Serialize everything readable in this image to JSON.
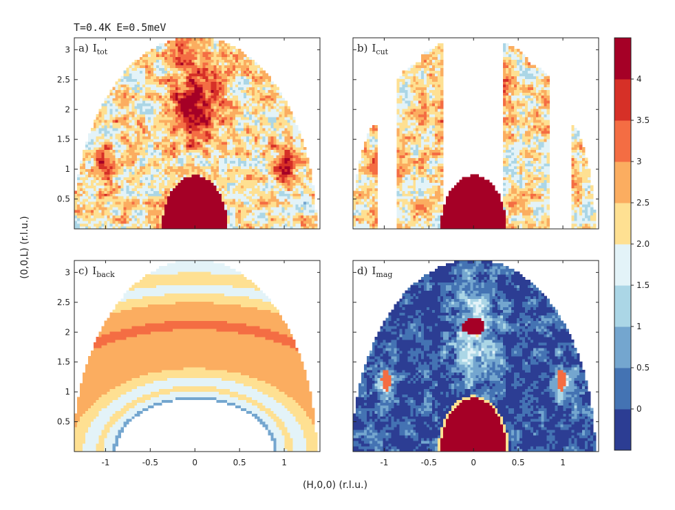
{
  "header": {
    "temperature": "T=0.4K",
    "energy": "E=0.5meV"
  },
  "axes": {
    "xlabel": "(H,0,0) (r.l.u.)",
    "ylabel": "(0,0,L) (r.l.u.)"
  },
  "colorbar": {
    "ticks": [
      "0",
      "0.5",
      "1",
      "1.5",
      "2.0",
      "2.5",
      "3",
      "3.5",
      "4"
    ],
    "colors": [
      "#2c3d93",
      "#4473b3",
      "#74a6cf",
      "#abd6e6",
      "#e3f3f8",
      "#fee092",
      "#fbad60",
      "#f46d43",
      "#d63027",
      "#a50026"
    ]
  },
  "chart_data": [
    {
      "type": "heatmap",
      "panel": "a",
      "panel_label": "a)",
      "symbol": "I",
      "subscript": "tot",
      "xlim": [
        -1.35,
        1.4
      ],
      "ylim": [
        0,
        3.2
      ],
      "xticks": [
        "-1",
        "-0.5",
        "0",
        "0.5",
        "1"
      ],
      "yticks": [
        "0.5",
        "1",
        "1.5",
        "2",
        "2.5",
        "3"
      ],
      "show_xticklabels": false,
      "show_yticklabels": true
    },
    {
      "type": "heatmap",
      "panel": "b",
      "panel_label": "b)",
      "symbol": "I",
      "subscript": "cut",
      "xlim": [
        -1.35,
        1.4
      ],
      "ylim": [
        0,
        3.2
      ],
      "xticks": [
        "-1",
        "-0.5",
        "0",
        "0.5",
        "1"
      ],
      "yticks": [
        "0.5",
        "1",
        "1.5",
        "2",
        "2.5",
        "3"
      ],
      "show_xticklabels": false,
      "show_yticklabels": false
    },
    {
      "type": "heatmap",
      "panel": "c",
      "panel_label": "c)",
      "symbol": "I",
      "subscript": "back",
      "xlim": [
        -1.35,
        1.4
      ],
      "ylim": [
        0,
        3.2
      ],
      "xticks": [
        "-1",
        "-0.5",
        "0",
        "0.5",
        "1"
      ],
      "yticks": [
        "0.5",
        "1",
        "1.5",
        "2",
        "2.5",
        "3"
      ],
      "show_xticklabels": true,
      "show_yticklabels": true
    },
    {
      "type": "heatmap",
      "panel": "d",
      "panel_label": "d)",
      "symbol": "I",
      "subscript": "mag",
      "xlim": [
        -1.35,
        1.4
      ],
      "ylim": [
        0,
        3.2
      ],
      "xticks": [
        "-1",
        "-0.5",
        "0",
        "0.5",
        "1"
      ],
      "yticks": [
        "0.5",
        "1",
        "1.5",
        "2",
        "2.5",
        "3"
      ],
      "show_xticklabels": true,
      "show_yticklabels": false
    }
  ]
}
